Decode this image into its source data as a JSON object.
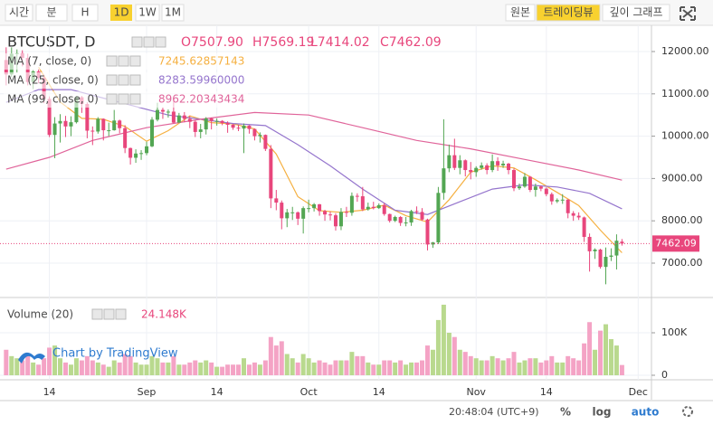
{
  "toolbar": {
    "left": [
      "시간",
      "분",
      "H",
      "1D",
      "1W",
      "1M"
    ],
    "left_active": 3,
    "right": [
      "원본",
      "트레이딩뷰",
      "깊이 그래프"
    ],
    "right_active": 1
  },
  "chart_data": {
    "type": "candlestick",
    "title": "BTCUSDT, D",
    "ohlc_labels": [
      "O7507.90",
      "H7569.19",
      "L7414.02",
      "C7462.09"
    ],
    "last_label": "7462.09",
    "up_color": "#53a653",
    "down_color": "#e8467c",
    "xlim": [
      -1.14,
      119.46
    ],
    "xticks": [
      {
        "value": 8,
        "label": "14"
      },
      {
        "value": 26,
        "label": "Sep"
      },
      {
        "value": 39,
        "label": "14"
      },
      {
        "value": 56,
        "label": "Oct"
      },
      {
        "value": 69,
        "label": "14"
      },
      {
        "value": 87,
        "label": "Nov"
      },
      {
        "value": 100,
        "label": "14"
      },
      {
        "value": 117,
        "label": "Dec"
      }
    ],
    "ylim": [
      6209,
      12620
    ],
    "yticks": [
      {
        "value": 7000,
        "label": "7000.00"
      },
      {
        "value": 8000,
        "label": "8000.00"
      },
      {
        "value": 9000,
        "label": "9000.00"
      },
      {
        "value": 10000,
        "label": "10000.00"
      },
      {
        "value": 11000,
        "label": "11000.00"
      },
      {
        "value": 12000,
        "label": "12000.00"
      }
    ],
    "grid": true,
    "ohlc": [
      [
        11800,
        12100,
        11200,
        11460
      ],
      [
        11460,
        12100,
        11400,
        11950
      ],
      [
        11950,
        12050,
        11500,
        11960
      ],
      [
        11960,
        12030,
        11650,
        11850
      ],
      [
        11850,
        11950,
        11200,
        11280
      ],
      [
        11280,
        11560,
        11120,
        11530
      ],
      [
        11530,
        11580,
        11250,
        11380
      ],
      [
        11380,
        11450,
        10780,
        10880
      ],
      [
        10880,
        10940,
        9980,
        10030
      ],
      [
        10030,
        10450,
        9480,
        10300
      ],
      [
        10300,
        10520,
        9850,
        10360
      ],
      [
        10360,
        10480,
        9980,
        10230
      ],
      [
        10230,
        10470,
        10000,
        10330
      ],
      [
        10330,
        10950,
        10300,
        10920
      ],
      [
        10920,
        10950,
        10550,
        10760
      ],
      [
        10760,
        10800,
        9950,
        10130
      ],
      [
        10130,
        10230,
        9790,
        10110
      ],
      [
        10110,
        10450,
        10060,
        10410
      ],
      [
        10410,
        10420,
        9900,
        10140
      ],
      [
        10140,
        10320,
        10000,
        10140
      ],
      [
        10140,
        10620,
        10130,
        10370
      ],
      [
        10370,
        10390,
        10070,
        10190
      ],
      [
        10190,
        10260,
        9600,
        9720
      ],
      [
        9720,
        9730,
        9330,
        9490
      ],
      [
        9490,
        9690,
        9370,
        9590
      ],
      [
        9590,
        9670,
        9440,
        9600
      ],
      [
        9600,
        9870,
        9550,
        9760
      ],
      [
        9760,
        10450,
        9740,
        10390
      ],
      [
        10390,
        10790,
        10350,
        10620
      ],
      [
        10620,
        10670,
        10410,
        10580
      ],
      [
        10580,
        10630,
        10440,
        10580
      ],
      [
        10580,
        10900,
        10300,
        10320
      ],
      [
        10320,
        10550,
        10320,
        10490
      ],
      [
        10490,
        10570,
        10330,
        10410
      ],
      [
        10410,
        10480,
        10190,
        10340
      ],
      [
        10340,
        10370,
        9980,
        10100
      ],
      [
        10100,
        10290,
        9950,
        10160
      ],
      [
        10160,
        10450,
        10040,
        10420
      ],
      [
        10420,
        10440,
        10160,
        10360
      ],
      [
        10360,
        10420,
        10250,
        10360
      ],
      [
        10360,
        10380,
        10260,
        10310
      ],
      [
        10310,
        10350,
        10080,
        10270
      ],
      [
        10270,
        10290,
        10150,
        10200
      ],
      [
        10200,
        10270,
        10120,
        10180
      ],
      [
        10180,
        10300,
        9600,
        10250
      ],
      [
        10250,
        10260,
        10060,
        10170
      ],
      [
        10170,
        10180,
        9900,
        10000
      ],
      [
        10000,
        10090,
        9850,
        10030
      ],
      [
        10030,
        10040,
        9650,
        9700
      ],
      [
        9700,
        9790,
        8300,
        8530
      ],
      [
        8530,
        8730,
        8250,
        8430
      ],
      [
        8430,
        8480,
        7800,
        8060
      ],
      [
        8060,
        8280,
        7850,
        8200
      ],
      [
        8200,
        8330,
        8020,
        8200
      ],
      [
        8200,
        8220,
        7900,
        8050
      ],
      [
        8050,
        8340,
        7700,
        8300
      ],
      [
        8300,
        8500,
        8200,
        8300
      ],
      [
        8300,
        8420,
        8220,
        8390
      ],
      [
        8390,
        8400,
        8120,
        8230
      ],
      [
        8230,
        8260,
        8000,
        8150
      ],
      [
        8150,
        8220,
        8010,
        8130
      ],
      [
        8130,
        8180,
        7770,
        7870
      ],
      [
        7870,
        8300,
        7780,
        8210
      ],
      [
        8210,
        8330,
        8090,
        8190
      ],
      [
        8190,
        8670,
        8120,
        8590
      ],
      [
        8590,
        8650,
        8450,
        8580
      ],
      [
        8580,
        8800,
        8230,
        8270
      ],
      [
        8270,
        8430,
        8240,
        8330
      ],
      [
        8330,
        8450,
        8270,
        8300
      ],
      [
        8300,
        8410,
        8280,
        8370
      ],
      [
        8370,
        8420,
        8120,
        8160
      ],
      [
        8160,
        8170,
        7960,
        8000
      ],
      [
        8000,
        8120,
        7970,
        8090
      ],
      [
        8090,
        8110,
        7880,
        7950
      ],
      [
        7950,
        8090,
        7870,
        7960
      ],
      [
        7960,
        8260,
        7880,
        8230
      ],
      [
        8230,
        8340,
        8160,
        8210
      ],
      [
        8210,
        8300,
        8000,
        8030
      ],
      [
        8030,
        8050,
        7300,
        7440
      ],
      [
        7440,
        7500,
        7360,
        7490
      ],
      [
        7490,
        8800,
        7450,
        8660
      ],
      [
        8660,
        10400,
        8500,
        9240
      ],
      [
        9240,
        9800,
        9150,
        9550
      ],
      [
        9550,
        9940,
        9200,
        9250
      ],
      [
        9250,
        9550,
        9100,
        9430
      ],
      [
        9430,
        9450,
        9050,
        9200
      ],
      [
        9200,
        9390,
        8980,
        9150
      ],
      [
        9150,
        9290,
        9040,
        9250
      ],
      [
        9250,
        9380,
        9210,
        9310
      ],
      [
        9310,
        9360,
        9100,
        9200
      ],
      [
        9200,
        9570,
        9150,
        9410
      ],
      [
        9410,
        9500,
        9180,
        9310
      ],
      [
        9310,
        9420,
        9250,
        9350
      ],
      [
        9350,
        9370,
        9100,
        9200
      ],
      [
        9200,
        9240,
        8700,
        8770
      ],
      [
        8770,
        8880,
        8730,
        8810
      ],
      [
        8810,
        9130,
        8780,
        9040
      ],
      [
        9040,
        9060,
        8680,
        8730
      ],
      [
        8730,
        8880,
        8570,
        8810
      ],
      [
        8810,
        8830,
        8700,
        8760
      ],
      [
        8760,
        8790,
        8580,
        8630
      ],
      [
        8630,
        8670,
        8380,
        8460
      ],
      [
        8460,
        8530,
        8420,
        8490
      ],
      [
        8490,
        8630,
        8400,
        8500
      ],
      [
        8500,
        8510,
        8060,
        8180
      ],
      [
        8180,
        8230,
        8000,
        8120
      ],
      [
        8120,
        8200,
        8020,
        8080
      ],
      [
        8080,
        8100,
        7500,
        7620
      ],
      [
        7620,
        7700,
        6800,
        7280
      ],
      [
        7280,
        7350,
        7100,
        7320
      ],
      [
        7320,
        7340,
        6870,
        6910
      ],
      [
        6910,
        7370,
        6500,
        7150
      ],
      [
        7150,
        7350,
        7050,
        7180
      ],
      [
        7180,
        7680,
        6850,
        7530
      ],
      [
        7507.9,
        7569.19,
        7414.02,
        7462.09
      ]
    ],
    "ma": [
      {
        "name": "MA (7, close, 0)",
        "color": "#f5b041",
        "x": [
          6,
          10,
          14,
          18,
          22,
          26,
          30,
          34,
          38,
          42,
          46,
          50,
          54,
          58,
          62,
          66,
          70,
          74,
          78,
          82,
          86,
          90,
          94,
          98,
          102,
          106,
          110,
          114
        ],
        "values": [
          11630,
          10810,
          10420,
          10400,
          10230,
          9880,
          10130,
          10480,
          10320,
          10290,
          10170,
          9580,
          8570,
          8240,
          8200,
          8250,
          8370,
          8120,
          7970,
          8500,
          9150,
          9300,
          9250,
          8970,
          8670,
          8360,
          7780,
          7245.62857143
        ],
        "value_label": "7245.62857143"
      },
      {
        "name": "MA (25, close, 0)",
        "color": "#9575cd",
        "x": [
          0,
          6,
          12,
          18,
          24,
          30,
          36,
          42,
          48,
          54,
          60,
          66,
          72,
          78,
          84,
          90,
          96,
          102,
          108,
          114
        ],
        "values": [
          10800,
          11100,
          11100,
          10900,
          10700,
          10500,
          10400,
          10300,
          10250,
          9800,
          9300,
          8750,
          8250,
          8150,
          8450,
          8750,
          8850,
          8800,
          8650,
          8283.5996
        ],
        "value_label": "8283.59960000"
      },
      {
        "name": "MA (99, close, 0)",
        "color": "#e0649a",
        "x": [
          0,
          8,
          16,
          26,
          36,
          46,
          56,
          66,
          76,
          86,
          96,
          106,
          114
        ],
        "values": [
          9220,
          9500,
          9900,
          10200,
          10400,
          10560,
          10500,
          10200,
          9900,
          9700,
          9450,
          9200,
          8962.20343434
        ],
        "value_label": "8962.20343434"
      }
    ],
    "volume": {
      "name": "Volume (20)",
      "value_label": "24.148K",
      "up_color": "#b9d98e",
      "down_color": "#f4a3c5",
      "ylim": [
        -6400,
        178700
      ],
      "yticks": [
        0,
        {
          "value": 100000,
          "label": "100K"
        }
      ],
      "values": [
        60000,
        45000,
        40000,
        35000,
        50000,
        30000,
        25000,
        40000,
        65000,
        70000,
        40000,
        30000,
        25000,
        40000,
        35000,
        45000,
        35000,
        30000,
        25000,
        20000,
        35000,
        30000,
        50000,
        45000,
        30000,
        25000,
        25000,
        45000,
        40000,
        30000,
        30000,
        45000,
        25000,
        25000,
        30000,
        35000,
        30000,
        35000,
        30000,
        20000,
        20000,
        25000,
        25000,
        25000,
        40000,
        25000,
        30000,
        25000,
        35000,
        90000,
        70000,
        80000,
        50000,
        40000,
        30000,
        50000,
        40000,
        30000,
        35000,
        30000,
        25000,
        35000,
        35000,
        35000,
        55000,
        45000,
        45000,
        30000,
        25000,
        25000,
        35000,
        35000,
        30000,
        35000,
        25000,
        30000,
        30000,
        35000,
        70000,
        60000,
        130000,
        166000,
        100000,
        90000,
        60000,
        55000,
        45000,
        40000,
        35000,
        35000,
        45000,
        40000,
        35000,
        40000,
        55000,
        30000,
        35000,
        40000,
        40000,
        30000,
        35000,
        45000,
        30000,
        30000,
        45000,
        40000,
        35000,
        75000,
        125000,
        60000,
        105000,
        120000,
        85000,
        70000,
        24148
      ]
    },
    "watermark": "Chart by TradingView"
  },
  "footer": {
    "time": "20:48:04 (UTC+9)",
    "buttons": [
      "%",
      "log",
      "auto"
    ]
  }
}
